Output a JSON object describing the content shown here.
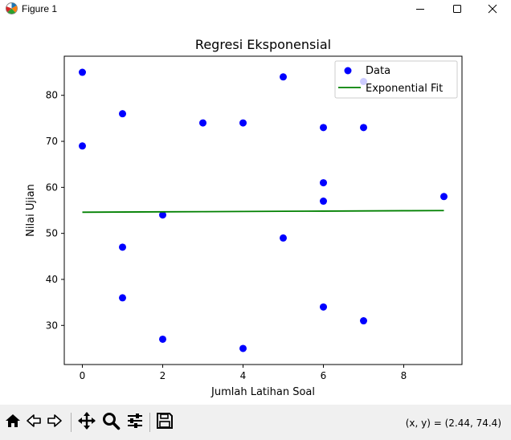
{
  "window": {
    "title": "Figure 1",
    "icon": "matplotlib-figure-icon",
    "controls": [
      "minimize-icon",
      "maximize-icon",
      "close-icon"
    ]
  },
  "toolbar": {
    "tools": [
      "home-icon",
      "back-arrow-icon",
      "forward-arrow-icon",
      "pan-icon",
      "zoom-icon",
      "configure-subplots-icon",
      "save-icon"
    ],
    "coords": "(x, y) = (2.44, 74.4)"
  },
  "chart_data": {
    "type": "scatter",
    "title": "Regresi Eksponensial",
    "xlabel": "Jumlah Latihan Soal",
    "ylabel": "Nilai Ujian",
    "xlim": [
      -0.45,
      9.45
    ],
    "ylim": [
      21.5,
      88.5
    ],
    "xticks": [
      0,
      2,
      4,
      6,
      8
    ],
    "yticks": [
      30,
      40,
      50,
      60,
      70,
      80
    ],
    "grid": false,
    "legend_position": "upper-right",
    "series": [
      {
        "name": "Data",
        "kind": "scatter",
        "color": "#0000ff",
        "points": [
          [
            0,
            85
          ],
          [
            0,
            69
          ],
          [
            1,
            76
          ],
          [
            1,
            47
          ],
          [
            1,
            36
          ],
          [
            2,
            54
          ],
          [
            2,
            27
          ],
          [
            3,
            74
          ],
          [
            4,
            74
          ],
          [
            4,
            25
          ],
          [
            5,
            84
          ],
          [
            5,
            49
          ],
          [
            6,
            73
          ],
          [
            6,
            61
          ],
          [
            6,
            57
          ],
          [
            6,
            34
          ],
          [
            7,
            83
          ],
          [
            7,
            73
          ],
          [
            7,
            31
          ],
          [
            9,
            58
          ]
        ]
      },
      {
        "name": "Exponential Fit",
        "kind": "line",
        "color": "#008000",
        "points": [
          [
            0,
            54.6
          ],
          [
            1,
            54.64
          ],
          [
            2,
            54.68
          ],
          [
            3,
            54.72
          ],
          [
            4,
            54.76
          ],
          [
            5,
            54.8
          ],
          [
            6,
            54.84
          ],
          [
            7,
            54.88
          ],
          [
            8,
            54.92
          ],
          [
            9,
            54.96
          ]
        ]
      }
    ]
  }
}
